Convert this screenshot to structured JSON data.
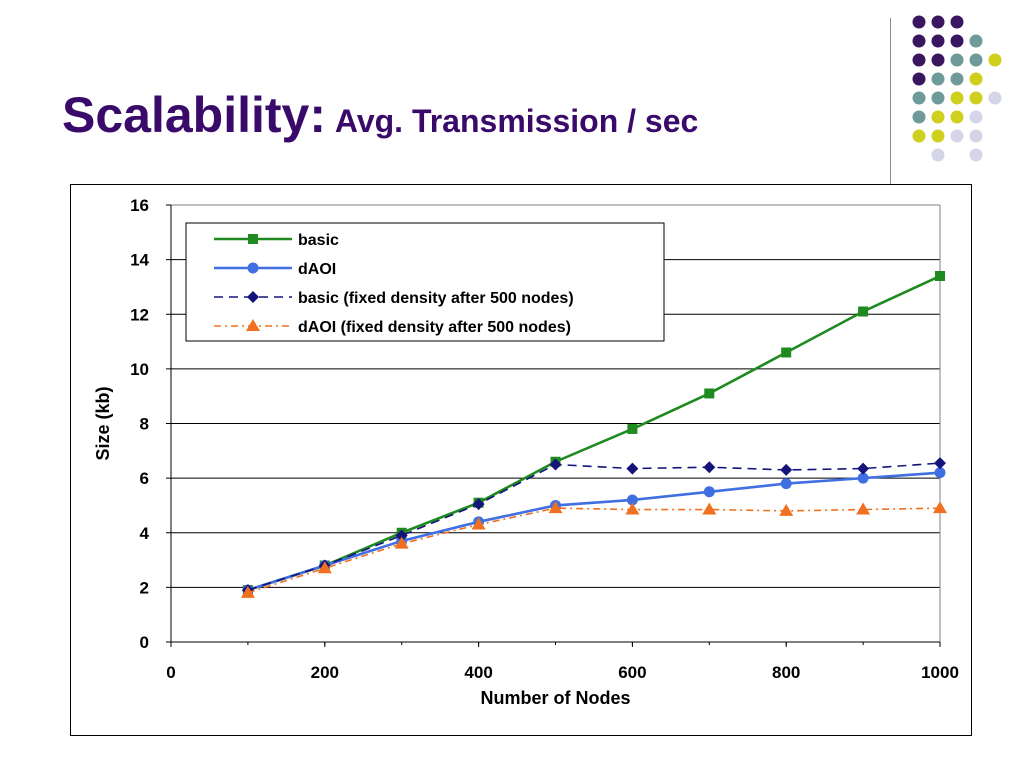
{
  "slide": {
    "title_main": "Scalability:",
    "title_sub": "Avg. Transmission / sec"
  },
  "decor": {
    "dot_colors": {
      "purple": "#3b1660",
      "teal": "#6f9a9a",
      "yellow": "#cfcf1e",
      "lavender": "#d5d5e8"
    }
  },
  "chart_data": {
    "type": "line",
    "xlabel": "Number of Nodes",
    "ylabel": "Size (kb)",
    "xlim": [
      0,
      1000
    ],
    "ylim": [
      0,
      16
    ],
    "xticks": [
      0,
      200,
      400,
      600,
      800,
      1000
    ],
    "yticks": [
      0,
      2,
      4,
      6,
      8,
      10,
      12,
      14,
      16
    ],
    "grid": "horizontal",
    "legend_position": "top-left",
    "x": [
      100,
      200,
      300,
      400,
      500,
      600,
      700,
      800,
      900,
      1000
    ],
    "series": [
      {
        "name": "basic",
        "color": "#1f8a1f",
        "dash": "solid",
        "marker": "square",
        "values": [
          1.9,
          2.8,
          4.0,
          5.1,
          6.6,
          7.8,
          9.1,
          10.6,
          12.1,
          13.4
        ]
      },
      {
        "name": "dAOI",
        "color": "#3f6fe0",
        "dash": "solid",
        "marker": "circle",
        "values": [
          1.9,
          2.8,
          3.7,
          4.4,
          5.0,
          5.2,
          5.5,
          5.8,
          6.0,
          6.2
        ]
      },
      {
        "name": "basic (fixed density after 500 nodes)",
        "color": "#14147a",
        "dash": "dashed",
        "marker": "diamond",
        "values": [
          1.9,
          2.8,
          3.9,
          5.05,
          6.5,
          6.35,
          6.4,
          6.3,
          6.35,
          6.55
        ]
      },
      {
        "name": "dAOI (fixed density after 500 nodes)",
        "color": "#f07020",
        "dash": "dashdot",
        "marker": "triangle",
        "values": [
          1.8,
          2.7,
          3.6,
          4.3,
          4.9,
          4.85,
          4.85,
          4.8,
          4.85,
          4.9
        ]
      }
    ]
  }
}
